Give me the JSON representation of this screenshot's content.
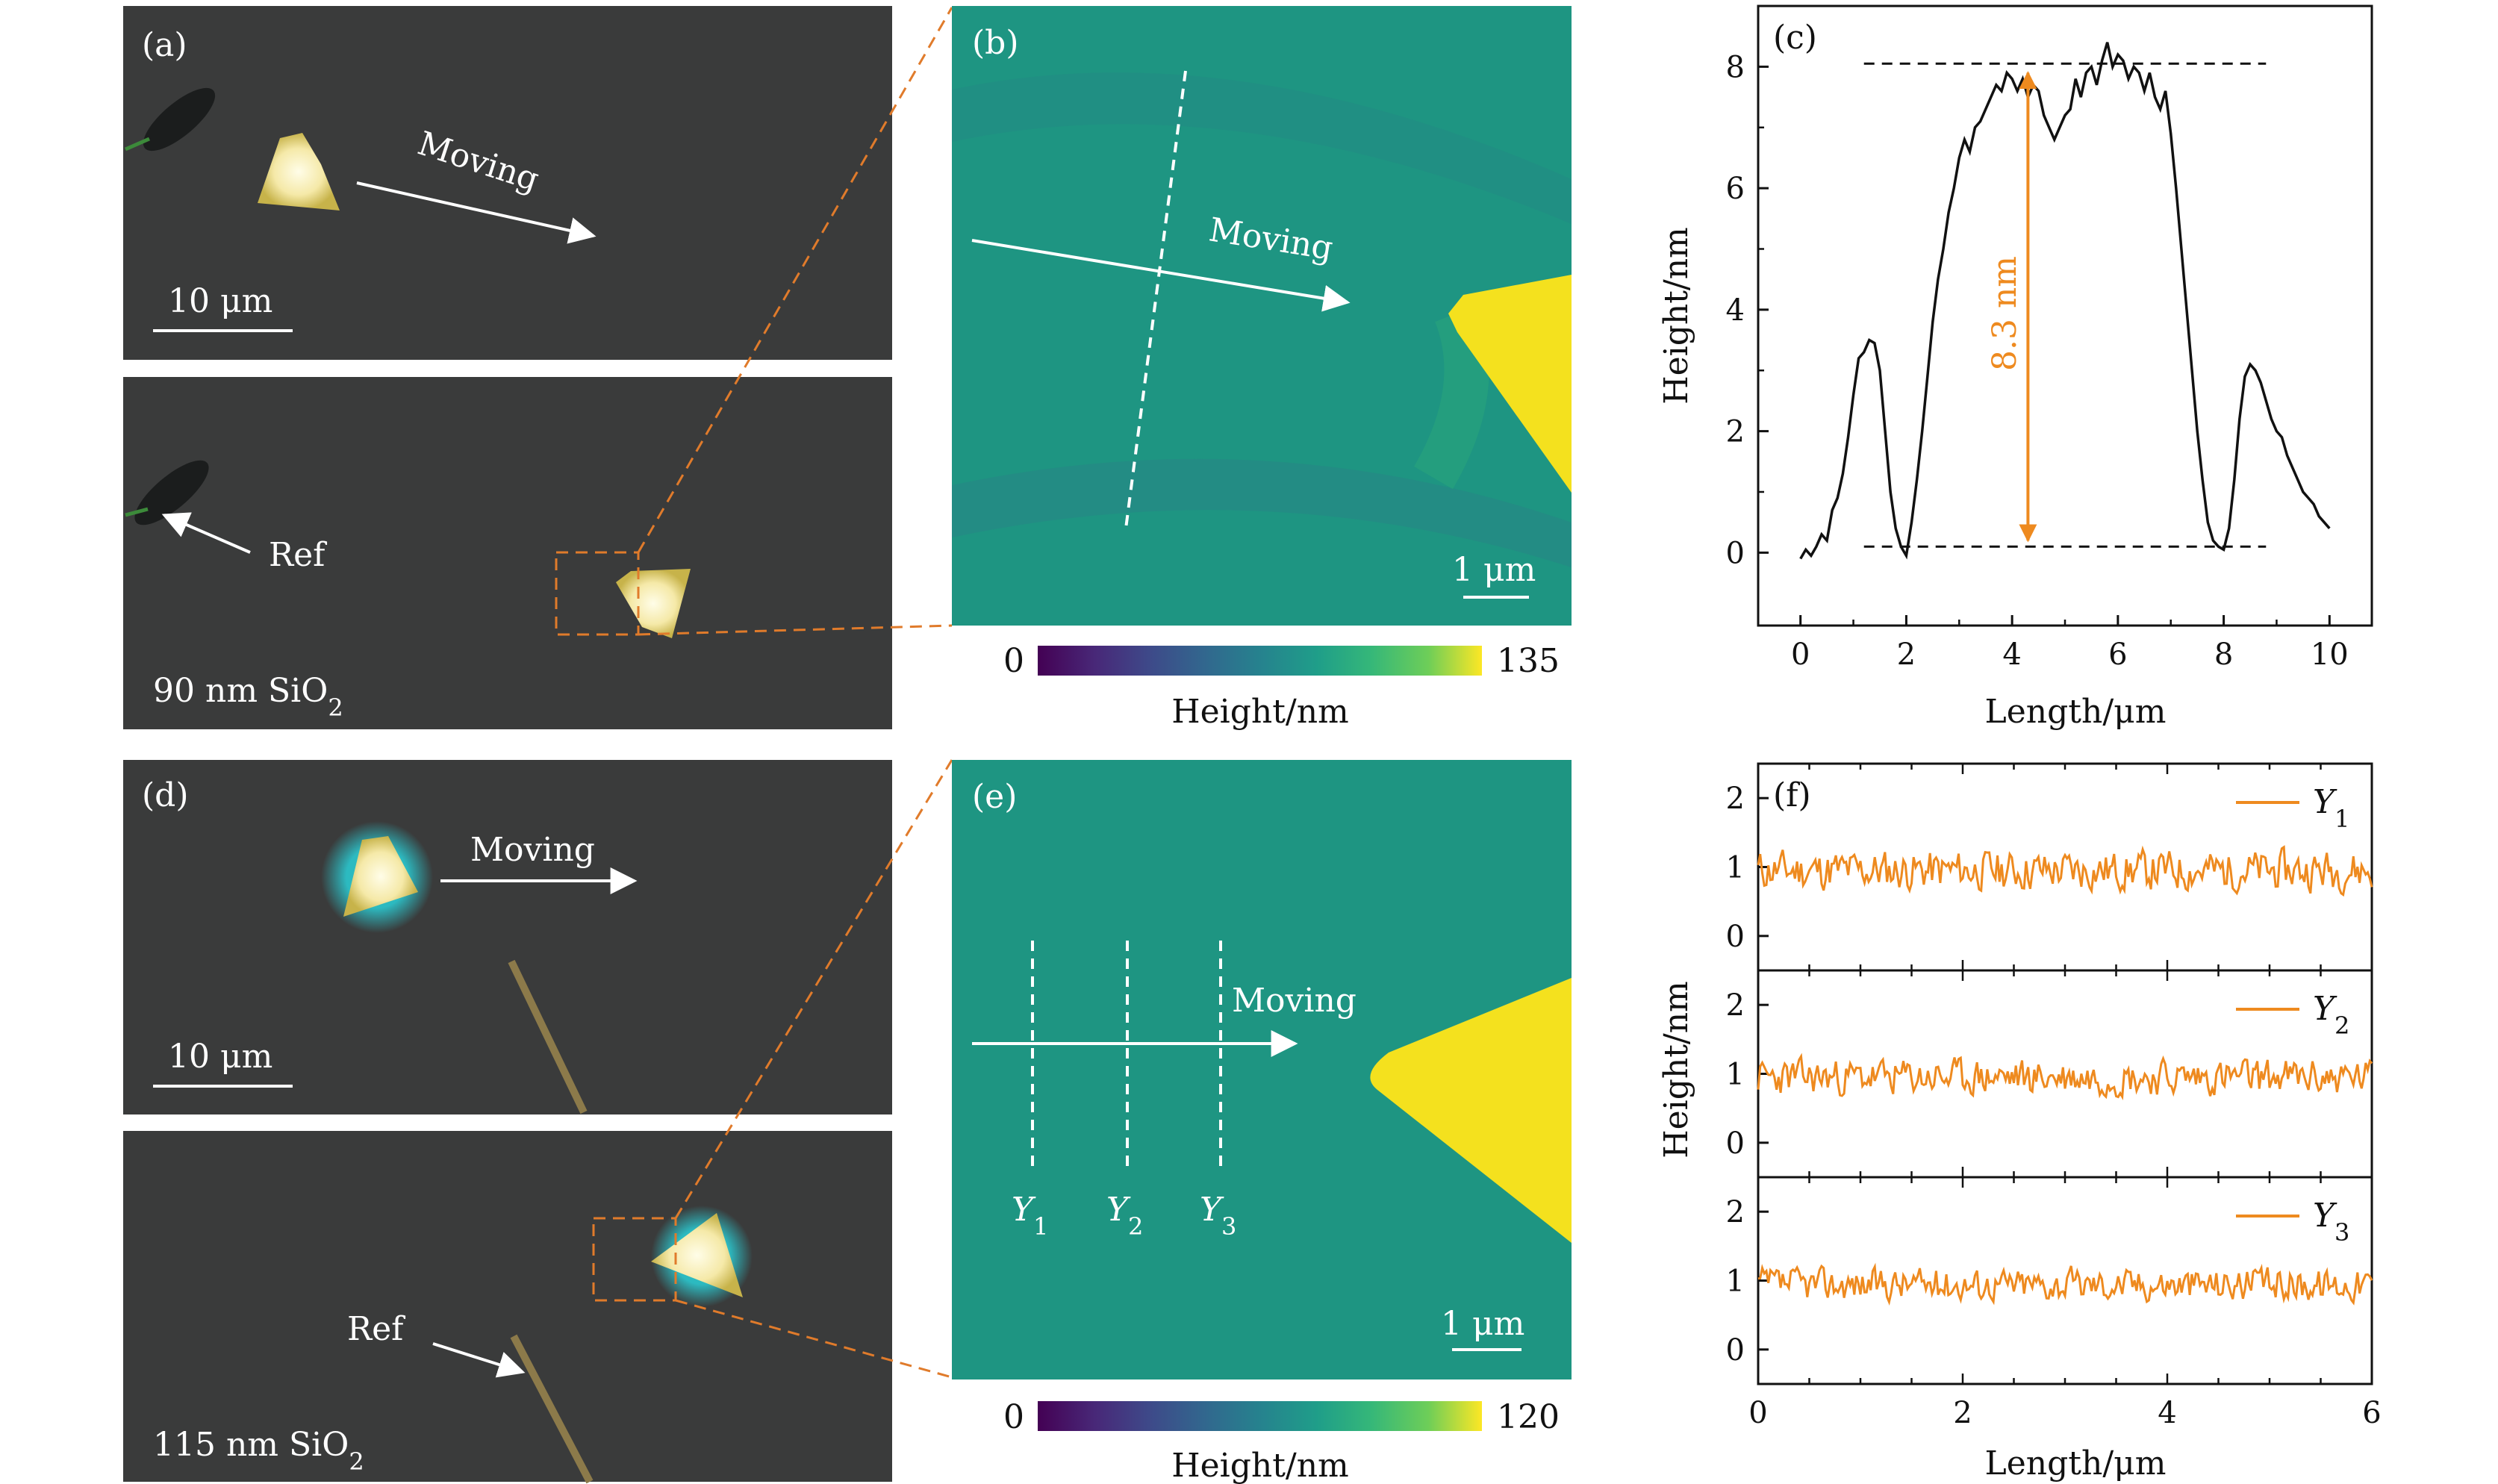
{
  "panels": {
    "a": {
      "label": "(a)",
      "top": {
        "moving": "Moving",
        "scale": "10 μm"
      },
      "bottom": {
        "ref": "Ref",
        "substrate_base": "90 nm SiO",
        "substrate_sub": "2"
      }
    },
    "b": {
      "label": "(b)",
      "moving": "Moving",
      "scale": "1 μm",
      "colorbar": {
        "min": "0",
        "max": "135",
        "title": "Height/nm"
      }
    },
    "c": {
      "label": "(c)",
      "annotation": "8.3 nm"
    },
    "d": {
      "label": "(d)",
      "top": {
        "moving": "Moving",
        "scale": "10 μm"
      },
      "bottom": {
        "ref": "Ref",
        "substrate_base": "115 nm SiO",
        "substrate_sub": "2"
      }
    },
    "e": {
      "label": "(e)",
      "moving": "Moving",
      "scale": "1 μm",
      "cut_labels": [
        {
          "base": "Y",
          "sub": "1"
        },
        {
          "base": "Y",
          "sub": "2"
        },
        {
          "base": "Y",
          "sub": "3"
        }
      ],
      "colorbar": {
        "min": "0",
        "max": "120",
        "title": "Height/nm"
      }
    },
    "f": {
      "label": "(f)"
    }
  },
  "colors": {
    "afm_background": "#1e9582",
    "flake_yellow": "#f4e11e",
    "profile_orange": "#ee8a1f",
    "optical_background": "#3a3b3b",
    "leader_dashes": "#e07b2b"
  },
  "chart_data": [
    {
      "id": "c",
      "type": "line",
      "xlabel": "Length/μm",
      "ylabel": "Height/nm",
      "xlim": [
        -0.8,
        10.8
      ],
      "ylim": [
        -1.2,
        9.0
      ],
      "xticks": [
        0,
        2,
        4,
        6,
        8,
        10
      ],
      "yticks": [
        0,
        2,
        4,
        6,
        8
      ],
      "grid": false,
      "reference_lines": [
        8.05,
        0.1
      ],
      "annotation_arrow": {
        "x": 4.3,
        "y_from": 0.2,
        "y_to": 7.9,
        "label": "8.3 nm"
      },
      "series": [
        {
          "x": [
            0.0,
            0.1,
            0.2,
            0.3,
            0.4,
            0.5,
            0.6,
            0.7,
            0.8,
            0.9,
            1.0,
            1.1,
            1.2,
            1.3,
            1.4,
            1.5,
            1.6,
            1.7,
            1.8,
            1.9,
            2.0,
            2.1,
            2.2,
            2.3,
            2.4,
            2.5,
            2.6,
            2.7,
            2.8,
            2.9,
            3.0,
            3.1,
            3.2,
            3.3,
            3.4,
            3.5,
            3.6,
            3.7,
            3.8,
            3.9,
            4.0,
            4.1,
            4.2,
            4.3,
            4.4,
            4.5,
            4.6,
            4.7,
            4.8,
            4.9,
            5.0,
            5.1,
            5.2,
            5.3,
            5.4,
            5.5,
            5.6,
            5.7,
            5.8,
            5.9,
            6.0,
            6.1,
            6.2,
            6.3,
            6.4,
            6.5,
            6.6,
            6.7,
            6.8,
            6.9,
            7.0,
            7.1,
            7.2,
            7.3,
            7.4,
            7.5,
            7.6,
            7.7,
            7.8,
            7.9,
            8.0,
            8.1,
            8.2,
            8.3,
            8.4,
            8.5,
            8.6,
            8.7,
            8.8,
            8.9,
            9.0,
            9.1,
            9.2,
            9.3,
            9.4,
            9.5,
            9.6,
            9.7,
            9.8,
            9.9,
            10.0
          ],
          "y": [
            -0.1,
            0.05,
            -0.05,
            0.1,
            0.3,
            0.2,
            0.7,
            0.9,
            1.3,
            1.9,
            2.6,
            3.2,
            3.3,
            3.5,
            3.45,
            3.0,
            2.0,
            1.0,
            0.4,
            0.1,
            -0.05,
            0.5,
            1.2,
            2.0,
            2.9,
            3.8,
            4.5,
            5.0,
            5.6,
            6.0,
            6.5,
            6.8,
            6.6,
            7.0,
            7.1,
            7.3,
            7.5,
            7.7,
            7.6,
            7.9,
            7.8,
            7.6,
            7.8,
            7.5,
            7.7,
            7.6,
            7.2,
            7.0,
            6.8,
            7.0,
            7.2,
            7.3,
            7.8,
            7.5,
            7.9,
            8.0,
            7.7,
            8.1,
            8.4,
            8.0,
            8.2,
            8.1,
            7.8,
            8.0,
            7.9,
            7.6,
            7.9,
            7.5,
            7.3,
            7.6,
            6.9,
            6.0,
            5.0,
            4.0,
            3.0,
            2.0,
            1.2,
            0.5,
            0.2,
            0.1,
            0.05,
            0.4,
            1.2,
            2.2,
            2.9,
            3.1,
            3.0,
            2.8,
            2.5,
            2.2,
            2.0,
            1.9,
            1.6,
            1.4,
            1.2,
            1.0,
            0.9,
            0.8,
            0.6,
            0.5,
            0.4
          ]
        }
      ]
    },
    {
      "id": "f",
      "type": "line",
      "xlabel": "Length/μm",
      "ylabel": "Height/nm",
      "xlim": [
        0,
        6
      ],
      "xticks": [
        0,
        2,
        4,
        6
      ],
      "subplot_ylim": [
        -0.5,
        2.5
      ],
      "yticks": [
        0,
        1,
        2
      ],
      "grid": false,
      "series": [
        {
          "name": "Y1",
          "seed": 11,
          "mean": 0.95,
          "amplitude": 0.22
        },
        {
          "name": "Y2",
          "seed": 23,
          "mean": 0.95,
          "amplitude": 0.2
        },
        {
          "name": "Y3",
          "seed": 37,
          "mean": 0.95,
          "amplitude": 0.18
        }
      ]
    }
  ]
}
